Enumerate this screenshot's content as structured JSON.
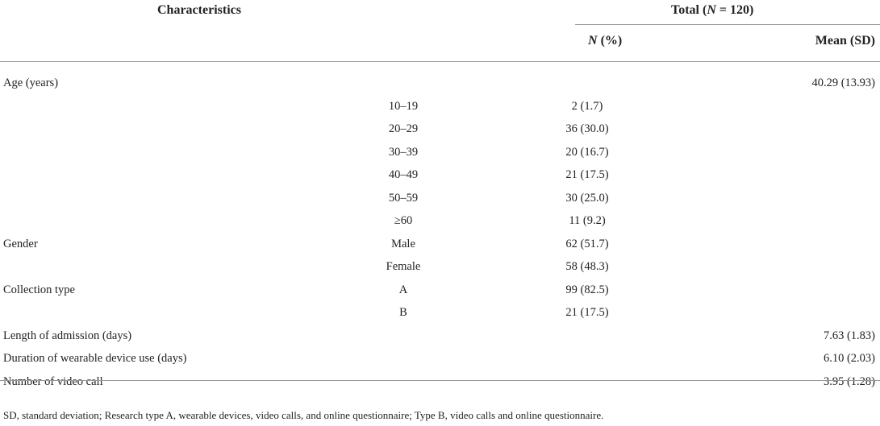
{
  "header": {
    "characteristics": "Characteristics",
    "total_prefix": "Total (",
    "total_n": "N",
    "total_suffix": " = 120)",
    "n_pct_n": "N",
    "n_pct_suffix": " (%)",
    "mean_sd": "Mean (SD)"
  },
  "rows": [
    {
      "label": "Age (years)",
      "sub": "",
      "n": "",
      "mean": "40.29 (13.93)"
    },
    {
      "label": "",
      "sub": "10–19",
      "n": "2 (1.7)",
      "mean": ""
    },
    {
      "label": "",
      "sub": "20–29",
      "n": "36 (30.0)",
      "mean": ""
    },
    {
      "label": "",
      "sub": "30–39",
      "n": "20 (16.7)",
      "mean": ""
    },
    {
      "label": "",
      "sub": "40–49",
      "n": "21 (17.5)",
      "mean": ""
    },
    {
      "label": "",
      "sub": "50–59",
      "n": "30 (25.0)",
      "mean": ""
    },
    {
      "label": "",
      "sub": "≥60",
      "n": "11 (9.2)",
      "mean": ""
    },
    {
      "label": "Gender",
      "sub": "Male",
      "n": "62 (51.7)",
      "mean": ""
    },
    {
      "label": "",
      "sub": "Female",
      "n": "58 (48.3)",
      "mean": ""
    },
    {
      "label": "Collection type",
      "sub": "A",
      "n": "99 (82.5)",
      "mean": ""
    },
    {
      "label": "",
      "sub": "B",
      "n": "21 (17.5)",
      "mean": ""
    },
    {
      "label": "Length of admission (days)",
      "sub": "",
      "n": "",
      "mean": "7.63 (1.83)"
    },
    {
      "label": "Duration of wearable device use (days)",
      "sub": "",
      "n": "",
      "mean": "6.10 (2.03)"
    },
    {
      "label": "Number of video call",
      "sub": "",
      "n": "",
      "mean": "3.95 (1.28)"
    }
  ],
  "footnote": "SD, standard deviation; Research type A, wearable devices, video calls, and online questionnaire; Type B, video calls and online questionnaire."
}
